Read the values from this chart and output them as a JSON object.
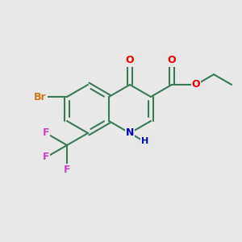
{
  "bg_color": "#e8e8e8",
  "bond_color": "#3a7a55",
  "atom_colors": {
    "Br": "#cc7722",
    "O": "#ee0000",
    "N": "#0000cc",
    "F": "#cc44cc",
    "C": "#3a7a55"
  },
  "figsize": [
    3.0,
    3.0
  ],
  "dpi": 100
}
